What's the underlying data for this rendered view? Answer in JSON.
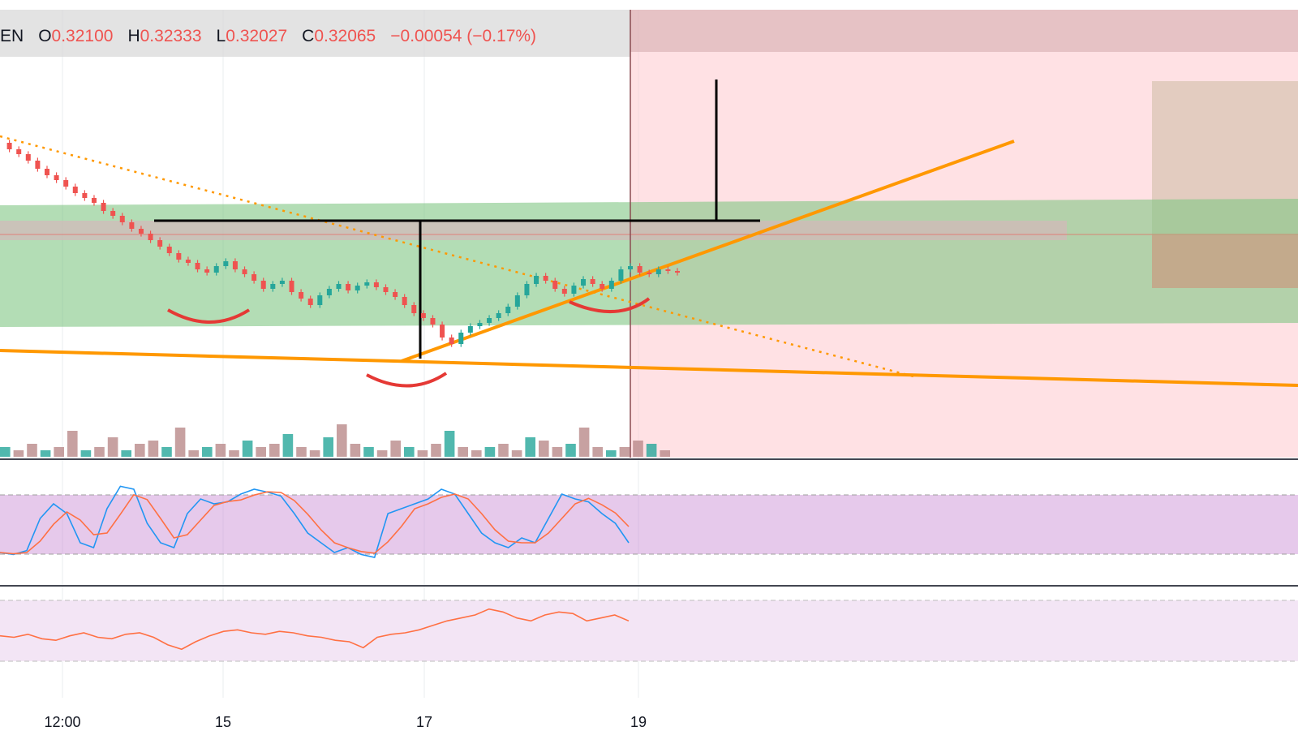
{
  "legend": {
    "symbol": "EN",
    "open_key": "O",
    "open": "0.32100",
    "high_key": "H",
    "high": "0.32333",
    "low_key": "L",
    "low": "0.32027",
    "close_key": "C",
    "close": "0.32065",
    "change": "−0.00054 (−0.17%)"
  },
  "colors": {
    "up": "#26a69a",
    "down": "#ef5350",
    "trendline": "#ff9800",
    "rsi_band": "#e1bee7",
    "stoch_k": "#2196f3",
    "stoch_d": "#ff7043"
  },
  "chart_data": {
    "type": "candlestick",
    "x_tick_labels": [
      "12:00",
      "15",
      "17",
      "19"
    ],
    "ohlc_last": {
      "open": 0.321,
      "high": 0.32333,
      "low": 0.32027,
      "close": 0.32065,
      "change": -0.00054,
      "change_pct": -0.17
    },
    "price_path": [
      0.33,
      0.3296,
      0.3293,
      0.3289,
      0.3284,
      0.328,
      0.3277,
      0.3273,
      0.3269,
      0.3266,
      0.3263,
      0.3258,
      0.3255,
      0.3251,
      0.3247,
      0.3244,
      0.324,
      0.3236,
      0.3232,
      0.3228,
      0.3226,
      0.3222,
      0.322,
      0.3224,
      0.3227,
      0.3222,
      0.3219,
      0.3215,
      0.321,
      0.3213,
      0.3215,
      0.3208,
      0.3204,
      0.32,
      0.3206,
      0.321,
      0.3213,
      0.3209,
      0.3212,
      0.3214,
      0.3211,
      0.3208,
      0.3205,
      0.32,
      0.3195,
      0.3192,
      0.3188,
      0.318,
      0.3176,
      0.3183,
      0.3187,
      0.3189,
      0.3192,
      0.3195,
      0.3199,
      0.3206,
      0.3213,
      0.3218,
      0.3215,
      0.321,
      0.3207,
      0.3212,
      0.3216,
      0.3213,
      0.321,
      0.3215,
      0.3222,
      0.3224,
      0.322,
      0.3219,
      0.3222,
      0.3221,
      0.322
    ],
    "stochastic_k": [
      20,
      18,
      22,
      55,
      70,
      60,
      30,
      25,
      65,
      88,
      85,
      50,
      30,
      25,
      60,
      75,
      70,
      72,
      80,
      85,
      82,
      78,
      60,
      40,
      30,
      20,
      25,
      18,
      15,
      60,
      65,
      70,
      75,
      85,
      80,
      60,
      40,
      30,
      25,
      35,
      30,
      55,
      80,
      75,
      72,
      60,
      50,
      30
    ],
    "rsi": [
      48,
      47,
      49,
      46,
      45,
      48,
      50,
      47,
      46,
      49,
      50,
      47,
      42,
      39,
      44,
      48,
      51,
      52,
      50,
      49,
      51,
      50,
      48,
      47,
      45,
      44,
      40,
      47,
      49,
      50,
      52,
      55,
      58,
      60,
      62,
      66,
      64,
      60,
      58,
      62,
      64,
      63,
      58,
      60,
      62,
      58
    ],
    "volume": [
      3,
      2,
      4,
      2,
      3,
      8,
      2,
      3,
      6,
      2,
      4,
      5,
      3,
      9,
      2,
      3,
      4,
      2,
      5,
      3,
      4,
      7,
      3,
      2,
      6,
      10,
      4,
      3,
      2,
      5,
      3,
      2,
      4,
      8,
      3,
      2,
      3,
      4,
      2,
      6,
      5,
      3,
      4,
      9,
      3,
      2,
      3,
      5,
      4,
      2
    ]
  }
}
